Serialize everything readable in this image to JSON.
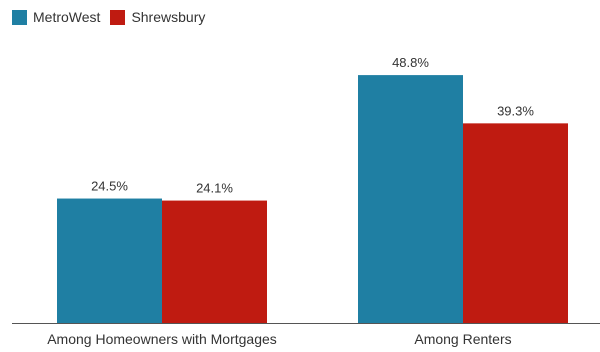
{
  "chart_data": {
    "type": "bar",
    "categories": [
      "Among Homeowners with Mortgages",
      "Among Renters"
    ],
    "series": [
      {
        "name": "MetroWest",
        "color": "#1f7fa3",
        "values": [
          24.5,
          48.8
        ],
        "labels": [
          "24.5%",
          "48.8%"
        ]
      },
      {
        "name": "Shrewsbury",
        "color": "#bf1b11",
        "values": [
          24.1,
          39.3
        ],
        "labels": [
          "24.1%",
          "39.3%"
        ]
      }
    ],
    "ylim": [
      0,
      60
    ],
    "grid": false,
    "legend_position": "top-left"
  }
}
